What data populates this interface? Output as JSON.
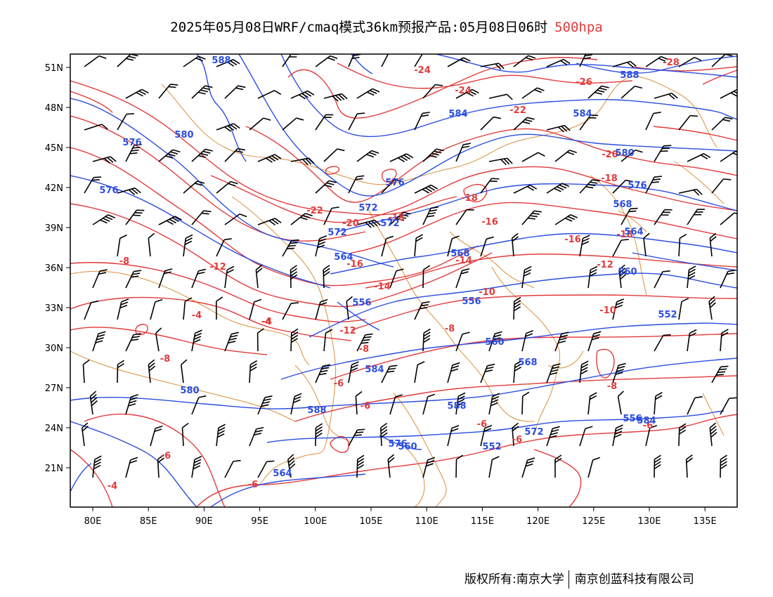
{
  "title": {
    "main": "2025年05月08日WRF/cmaq模式36km预报产品:05月08日06时",
    "level": "500hpa"
  },
  "footer": {
    "copyright": "版权所有:南京大学",
    "company": "南京创蓝科技有限公司"
  },
  "colors": {
    "temperature": "#e23b3b",
    "height": "#2a4de0",
    "border": "#d9903a",
    "wind": "#000000"
  },
  "map": {
    "lon_range": [
      78,
      138
    ],
    "lat_range": [
      18,
      52
    ],
    "lon_ticks": [
      "80E",
      "85E",
      "90E",
      "95E",
      "100E",
      "105E",
      "110E",
      "115E",
      "120E",
      "125E",
      "130E",
      "135E"
    ],
    "lat_ticks": [
      "51N",
      "48N",
      "45N",
      "42N",
      "39N",
      "36N",
      "33N",
      "30N",
      "27N",
      "24N",
      "21N"
    ]
  },
  "temperature_labels": [
    "-28",
    "-26",
    "-24",
    "-24",
    "-22",
    "-22",
    "-20",
    "-20",
    "-18",
    "-18",
    "-18",
    "-18",
    "-16",
    "-16",
    "-16",
    "-14",
    "-14",
    "-12",
    "-12",
    "-12",
    "-10",
    "-10",
    "-8",
    "-8",
    "-8",
    "-8",
    "-8",
    "-6",
    "-6",
    "-6",
    "-6",
    "-6",
    "-6",
    "-6",
    "-4",
    "-4",
    "-4",
    "-4"
  ],
  "height_labels": [
    "588",
    "588",
    "584",
    "584",
    "580",
    "580",
    "576",
    "576",
    "576",
    "576",
    "572",
    "572",
    "572",
    "568",
    "568",
    "564",
    "564",
    "560",
    "556",
    "556",
    "552",
    "560",
    "568",
    "584",
    "580",
    "588",
    "588",
    "584",
    "576",
    "572",
    "564",
    "560",
    "556",
    "552"
  ]
}
